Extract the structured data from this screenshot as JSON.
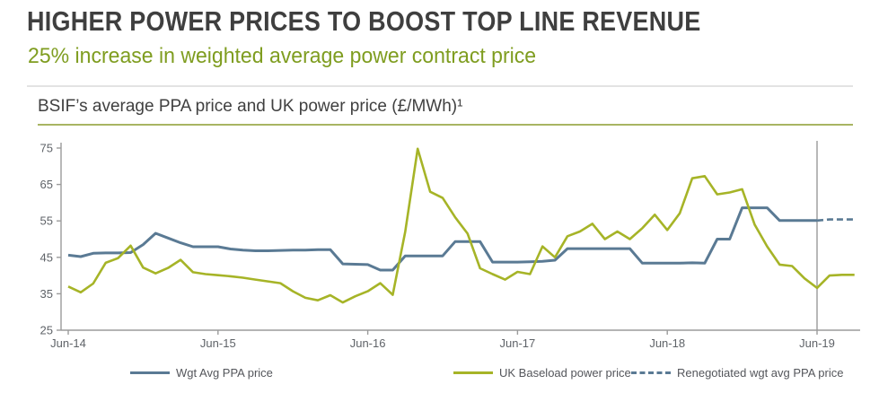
{
  "header": {
    "title": "HIGHER POWER PRICES TO BOOST TOP LINE REVENUE",
    "subtitle": "25% increase in weighted average power contract price"
  },
  "chart": {
    "title": "BSIF’s average PPA price and UK power price (£/MWh)¹"
  },
  "colors": {
    "title_gray": "#3f3f3f",
    "accent_green": "#7f9d20",
    "underline_olive": "#a8b562",
    "divider_gray": "#e3e3e3",
    "axis_gray": "#9b9b9b",
    "tick_text_gray": "#5f6368",
    "annotation_line_gray": "#b8b8b8",
    "ppa_blue": "#5a7a94",
    "baseload_green": "#a6b427"
  },
  "chart_data": {
    "type": "line",
    "title": "BSIF's average PPA price and UK power price (£/MWh)1",
    "x_unit": "monthly, Jun-2014 to Sep-2019",
    "x_tick_labels": [
      "Jun-14",
      "Jun-15",
      "Jun-16",
      "Jun-17",
      "Jun-18",
      "Jun-19"
    ],
    "months_per_tick": 12,
    "y_ticks": [
      25,
      35,
      45,
      55,
      65,
      75
    ],
    "ylim": [
      25,
      75
    ],
    "grid": false,
    "legend_position": "bottom",
    "annotation_line_at": "Jun-19",
    "annotation_line_color": "#b8b8b8",
    "series": [
      {
        "id": "wgt-avg-ppa-price",
        "name": "Wgt Avg PPA price",
        "color": "#5a7a94",
        "style": "solid",
        "width": 3,
        "start_index": 0,
        "start_month": "Jun-14",
        "values": [
          45.6,
          45.2,
          46.1,
          46.2,
          46.2,
          46.3,
          48.5,
          51.6,
          50.3,
          49.0,
          47.9,
          47.9,
          47.9,
          47.3,
          47.0,
          46.8,
          46.8,
          46.9,
          47.0,
          47.0,
          47.1,
          47.1,
          43.2,
          43.1,
          43.0,
          41.5,
          41.5,
          45.4,
          45.4,
          45.4,
          45.4,
          49.3,
          49.3,
          49.3,
          43.7,
          43.7,
          43.7,
          43.8,
          43.9,
          44.2,
          47.4,
          47.4,
          47.4,
          47.4,
          47.4,
          47.4,
          43.4,
          43.4,
          43.4,
          43.4,
          43.5,
          43.4,
          50.0,
          50.0,
          58.6,
          58.6,
          58.6,
          55.1,
          55.1,
          55.1,
          55.1
        ]
      },
      {
        "id": "uk-baseload-power-price",
        "name": "UK Baseload power price",
        "color": "#a6b427",
        "style": "solid",
        "width": 2.6,
        "start_index": 0,
        "start_month": "Jun-14",
        "values": [
          37.0,
          35.4,
          37.8,
          43.5,
          44.8,
          48.2,
          42.2,
          40.6,
          42.1,
          44.3,
          40.9,
          40.4,
          40.1,
          39.8,
          39.4,
          38.9,
          38.4,
          37.9,
          35.7,
          33.9,
          33.2,
          34.6,
          32.6,
          34.3,
          35.7,
          37.9,
          34.7,
          52.0,
          74.8,
          63.0,
          61.3,
          56.0,
          51.5,
          42.0,
          40.4,
          38.9,
          41.0,
          40.4,
          48.0,
          45.0,
          50.8,
          52.1,
          54.2,
          50.0,
          52.1,
          50.0,
          53.0,
          56.7,
          52.5,
          57.1,
          66.7,
          67.3,
          62.3,
          62.8,
          63.7,
          54.0,
          48.0,
          43.0,
          42.6,
          39.2,
          36.6,
          40.0,
          40.2,
          40.2
        ]
      },
      {
        "id": "renegotiated-wgt-avg-ppa-price",
        "name": "Renegotiated wgt avg PPA price",
        "color": "#5a7a94",
        "style": "dashed",
        "width": 2.6,
        "start_index": 60,
        "start_month": "Jun-19",
        "values": [
          55.1,
          55.4,
          55.4,
          55.4
        ]
      }
    ]
  }
}
